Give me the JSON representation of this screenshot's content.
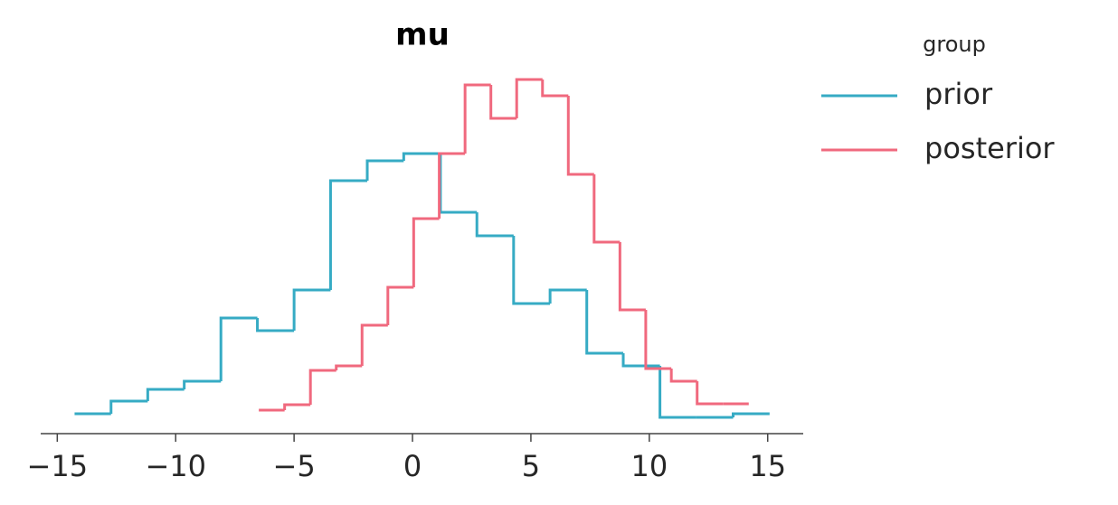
{
  "chart_data": {
    "type": "histogram",
    "title": "mu",
    "xlim": [
      -15.7,
      16.5
    ],
    "ylim": [
      0,
      400
    ],
    "xticks": [
      {
        "value": -15,
        "label": "−15"
      },
      {
        "value": -10,
        "label": "−10"
      },
      {
        "value": -5,
        "label": "−5"
      },
      0,
      5,
      10,
      15
    ],
    "legend_title": "group",
    "legend": "outside upper right",
    "series": [
      {
        "name": "prior",
        "color": "#36abc4",
        "bins": [
          -14.27,
          -12.73,
          -11.18,
          -9.64,
          -8.09,
          -6.55,
          -5.0,
          -3.46,
          -1.91,
          -0.37,
          1.18,
          2.72,
          4.27,
          5.81,
          7.36,
          8.9,
          10.45,
          11.99,
          13.54,
          15.08
        ],
        "values": [
          22,
          36,
          49,
          58,
          128,
          114,
          159,
          280,
          302,
          310,
          245,
          219,
          144,
          159,
          89,
          75,
          18,
          18,
          22
        ]
      },
      {
        "name": "posterior",
        "color": "#f0697e",
        "bins": [
          -6.49,
          -5.4,
          -4.31,
          -3.22,
          -2.13,
          -1.04,
          0.05,
          1.13,
          2.22,
          3.31,
          4.4,
          5.49,
          6.58,
          7.67,
          8.76,
          9.85,
          10.93,
          12.02,
          13.11,
          14.2
        ],
        "values": [
          26,
          32,
          70,
          75,
          120,
          162,
          238,
          310,
          386,
          349,
          392,
          374,
          287,
          212,
          137,
          72,
          58,
          33,
          33
        ]
      }
    ]
  }
}
